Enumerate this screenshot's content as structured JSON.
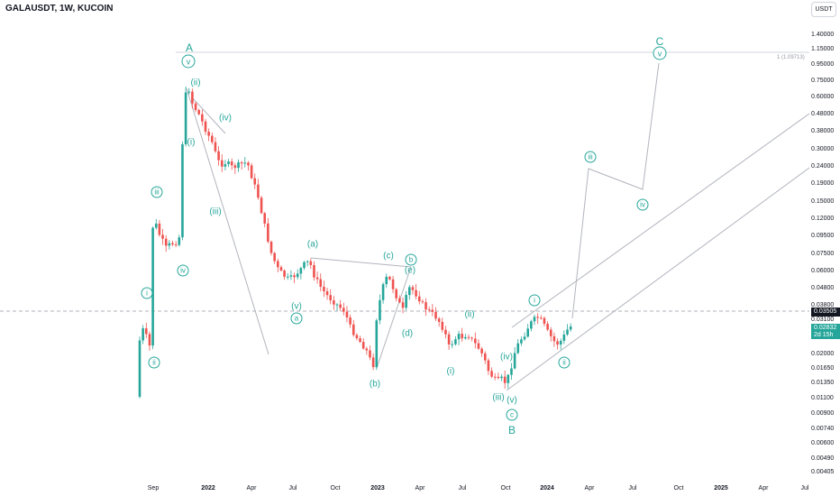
{
  "chart_data": {
    "type": "candlestick",
    "title": "GALAUSDT, 1W, KUCOIN",
    "currency": "USDT",
    "price_axis": [
      "1.40000",
      "1.15000",
      "0.95000",
      "0.75000",
      "0.60000",
      "0.48000",
      "0.38000",
      "0.30000",
      "0.24000",
      "0.19000",
      "0.15000",
      "0.12000",
      "0.09500",
      "0.07500",
      "0.06000",
      "0.04800",
      "0.03800",
      "0.03100",
      "0.02500",
      "0.02000",
      "0.01650",
      "0.01350",
      "0.01100",
      "0.00900",
      "0.00740",
      "0.00600",
      "0.00490",
      "0.00405"
    ],
    "time_axis": [
      {
        "label": "Sep",
        "strong": false
      },
      {
        "label": "2022",
        "strong": true
      },
      {
        "label": "Apr",
        "strong": false
      },
      {
        "label": "Jul",
        "strong": false
      },
      {
        "label": "Oct",
        "strong": false
      },
      {
        "label": "2023",
        "strong": true
      },
      {
        "label": "Apr",
        "strong": false
      },
      {
        "label": "Jul",
        "strong": false
      },
      {
        "label": "Oct",
        "strong": false
      },
      {
        "label": "2024",
        "strong": true
      },
      {
        "label": "Apr",
        "strong": false
      },
      {
        "label": "Jul",
        "strong": false
      },
      {
        "label": "Oct",
        "strong": false
      },
      {
        "label": "2025",
        "strong": true
      },
      {
        "label": "Apr",
        "strong": false
      },
      {
        "label": "Jul",
        "strong": false
      }
    ],
    "last_price": "0.02832",
    "countdown": "2d 15h",
    "crosshair_price": "0.03505",
    "fib_label": "1 (1.09713)",
    "colors": {
      "up": "#26a69a",
      "down": "#ef5350",
      "wave": "#26a69a",
      "lines": "#b2b5be"
    },
    "wave_labels": [
      {
        "text": "A",
        "circle": false,
        "big": true
      },
      {
        "text": "v",
        "circle": true,
        "big": true
      },
      {
        "text": "(ii)",
        "circle": false,
        "big": false
      },
      {
        "text": "(iv)",
        "circle": false,
        "big": false
      },
      {
        "text": "(i)",
        "circle": false,
        "big": false
      },
      {
        "text": "(iii)",
        "circle": false,
        "big": false
      },
      {
        "text": "iii",
        "circle": true,
        "big": false
      },
      {
        "text": "iv",
        "circle": true,
        "big": false
      },
      {
        "text": "i",
        "circle": true,
        "big": false
      },
      {
        "text": "ii",
        "circle": true,
        "big": false
      },
      {
        "text": "(a)",
        "circle": false,
        "big": false
      },
      {
        "text": "(v)",
        "circle": false,
        "big": false
      },
      {
        "text": "a",
        "circle": true,
        "big": false
      },
      {
        "text": "(c)",
        "circle": false,
        "big": false
      },
      {
        "text": "b",
        "circle": true,
        "big": false
      },
      {
        "text": "(e)",
        "circle": false,
        "big": false
      },
      {
        "text": "(d)",
        "circle": false,
        "big": false
      },
      {
        "text": "(b)",
        "circle": false,
        "big": false
      },
      {
        "text": "(ii)",
        "circle": false,
        "big": false
      },
      {
        "text": "(i)",
        "circle": false,
        "big": false
      },
      {
        "text": "(iv)",
        "circle": false,
        "big": false
      },
      {
        "text": "(iii)",
        "circle": false,
        "big": false
      },
      {
        "text": "(v)",
        "circle": false,
        "big": false
      },
      {
        "text": "c",
        "circle": true,
        "big": false
      },
      {
        "text": "B",
        "circle": false,
        "big": true
      },
      {
        "text": "i",
        "circle": true,
        "big": false
      },
      {
        "text": "ii",
        "circle": true,
        "big": false
      },
      {
        "text": "iii",
        "circle": true,
        "big": false
      },
      {
        "text": "iv",
        "circle": true,
        "big": false
      },
      {
        "text": "C",
        "circle": false,
        "big": true
      },
      {
        "text": "v",
        "circle": true,
        "big": true
      }
    ]
  }
}
